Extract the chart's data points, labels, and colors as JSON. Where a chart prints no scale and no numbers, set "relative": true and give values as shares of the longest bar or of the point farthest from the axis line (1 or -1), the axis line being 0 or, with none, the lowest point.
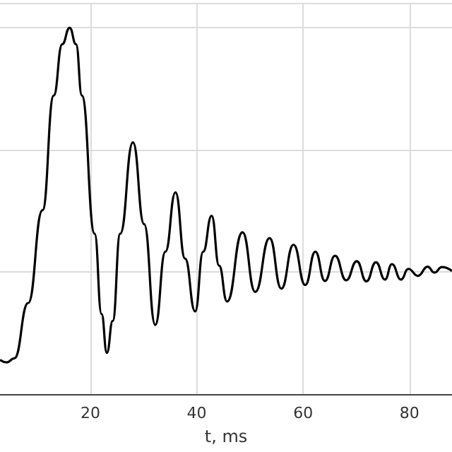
{
  "chart_data": {
    "type": "line",
    "xlabel": "t, ms",
    "relative": true,
    "grid": true,
    "marker": "none",
    "line_style": "solid",
    "xlim": [
      3,
      88
    ],
    "xticks": [
      20,
      40,
      60,
      80
    ],
    "series": [
      {
        "color": "#000000",
        "x": [
          3.0,
          4.3,
          5.7,
          8.3,
          11.0,
          13.1,
          14.7,
          16.1,
          17.3,
          18.4,
          20.8,
          22.1,
          23.1,
          24.2,
          25.6,
          28.0,
          30.1,
          32.2,
          34.1,
          36.0,
          37.8,
          39.7,
          41.2,
          42.8,
          44.2,
          45.7,
          48.6,
          51.0,
          53.7,
          55.9,
          58.2,
          60.4,
          62.3,
          64.1,
          66.0,
          68.1,
          70.1,
          71.9,
          73.7,
          75.4,
          76.7,
          78.4,
          79.8,
          81.6,
          83.4,
          84.7,
          86.1,
          88.0
        ],
        "values": [
          0.094,
          0.087,
          0.098,
          0.249,
          0.502,
          0.815,
          0.955,
          1.0,
          0.955,
          0.815,
          0.438,
          0.219,
          0.113,
          0.2,
          0.438,
          0.687,
          0.464,
          0.189,
          0.389,
          0.551,
          0.37,
          0.226,
          0.389,
          0.487,
          0.351,
          0.253,
          0.442,
          0.279,
          0.426,
          0.288,
          0.408,
          0.298,
          0.389,
          0.309,
          0.378,
          0.311,
          0.363,
          0.308,
          0.36,
          0.313,
          0.355,
          0.313,
          0.342,
          0.323,
          0.348,
          0.332,
          0.347,
          0.336
        ]
      }
    ]
  }
}
